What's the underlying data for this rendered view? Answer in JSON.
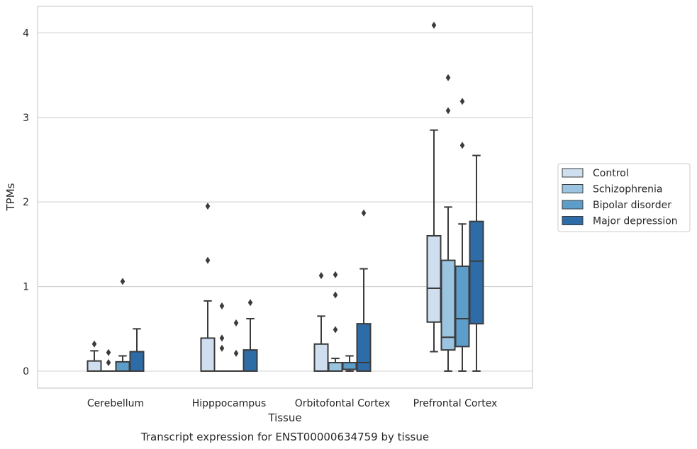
{
  "chart_data": {
    "type": "box",
    "xlabel": "Tissue",
    "ylabel": "TPMs",
    "caption": "Transcript expression for ENST00000634759 by tissue",
    "ylim": [
      -0.2,
      4.3
    ],
    "yticks": [
      0,
      1,
      2,
      3,
      4
    ],
    "grid": "horizontal",
    "legend_position": "right",
    "categories": [
      "Cerebellum",
      "Hipppocampus",
      "Orbitofontal Cortex",
      "Prefrontal Cortex"
    ],
    "series": [
      {
        "name": "Control",
        "color": "#cfdff0",
        "boxes": [
          {
            "whislo": 0,
            "q1": 0,
            "med": 0,
            "q3": 0.12,
            "whishi": 0.24,
            "fliers": [
              0.32
            ]
          },
          {
            "whislo": 0,
            "q1": 0,
            "med": 0,
            "q3": 0.39,
            "whishi": 0.83,
            "fliers": [
              1.31,
              1.95
            ]
          },
          {
            "whislo": 0,
            "q1": 0,
            "med": 0,
            "q3": 0.32,
            "whishi": 0.65,
            "fliers": [
              1.13
            ]
          },
          {
            "whislo": 0.23,
            "q1": 0.58,
            "med": 0.98,
            "q3": 1.6,
            "whishi": 2.85,
            "fliers": [
              4.09
            ]
          }
        ]
      },
      {
        "name": "Schizophrenia",
        "color": "#9bc4e0",
        "boxes": [
          {
            "whislo": 0,
            "q1": 0,
            "med": 0,
            "q3": 0,
            "whishi": 0,
            "fliers": [
              0.1,
              0.22
            ]
          },
          {
            "whislo": 0,
            "q1": 0,
            "med": 0,
            "q3": 0,
            "whishi": 0,
            "fliers": [
              0.27,
              0.39,
              0.77
            ]
          },
          {
            "whislo": 0,
            "q1": 0,
            "med": 0,
            "q3": 0.1,
            "whishi": 0.15,
            "fliers": [
              0.49,
              0.9,
              1.14
            ]
          },
          {
            "whislo": 0,
            "q1": 0.25,
            "med": 0.4,
            "q3": 1.31,
            "whishi": 1.94,
            "fliers": [
              3.08,
              3.47
            ]
          }
        ]
      },
      {
        "name": "Bipolar disorder",
        "color": "#5c9dc9",
        "boxes": [
          {
            "whislo": 0,
            "q1": 0,
            "med": 0,
            "q3": 0.11,
            "whishi": 0.18,
            "fliers": [
              1.06
            ]
          },
          {
            "whislo": 0,
            "q1": 0,
            "med": 0,
            "q3": 0,
            "whishi": 0,
            "fliers": [
              0.21,
              0.57
            ]
          },
          {
            "whislo": 0,
            "q1": 0.02,
            "med": 0.02,
            "q3": 0.1,
            "whishi": 0.18,
            "fliers": []
          },
          {
            "whislo": 0,
            "q1": 0.29,
            "med": 0.62,
            "q3": 1.24,
            "whishi": 1.74,
            "fliers": [
              2.67,
              3.19
            ]
          }
        ]
      },
      {
        "name": "Major depression",
        "color": "#2e6ca8",
        "boxes": [
          {
            "whislo": 0,
            "q1": 0,
            "med": 0,
            "q3": 0.23,
            "whishi": 0.5,
            "fliers": []
          },
          {
            "whislo": 0,
            "q1": 0,
            "med": 0,
            "q3": 0.25,
            "whishi": 0.62,
            "fliers": [
              0.81
            ]
          },
          {
            "whislo": 0,
            "q1": 0,
            "med": 0.1,
            "q3": 0.56,
            "whishi": 1.21,
            "fliers": [
              1.87
            ]
          },
          {
            "whislo": 0,
            "q1": 0.56,
            "med": 1.3,
            "q3": 1.77,
            "whishi": 2.55,
            "fliers": []
          }
        ]
      }
    ]
  }
}
